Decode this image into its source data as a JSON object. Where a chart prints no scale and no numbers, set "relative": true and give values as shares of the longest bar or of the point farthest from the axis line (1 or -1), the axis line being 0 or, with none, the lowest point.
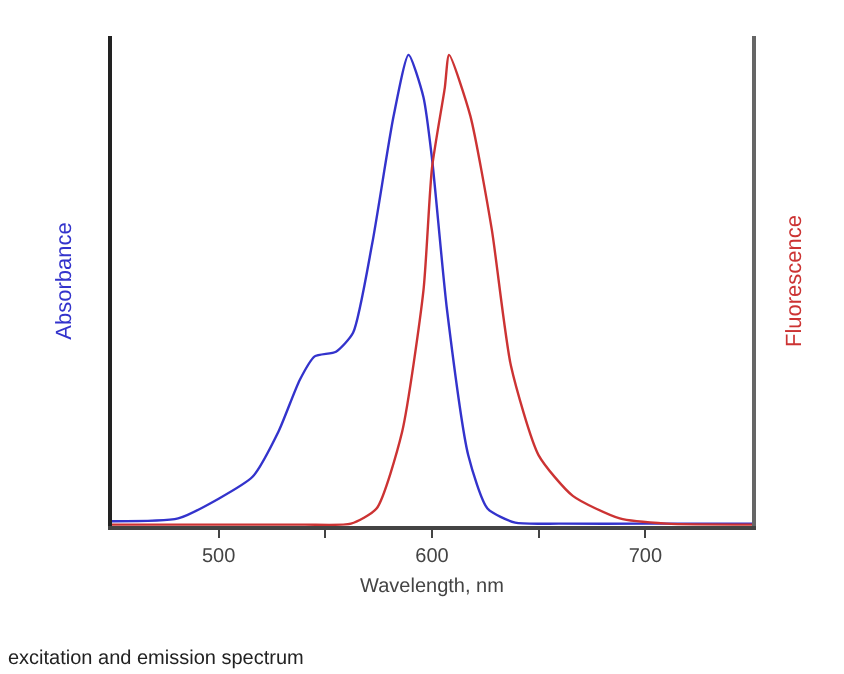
{
  "chart_data": {
    "type": "line",
    "relative": true,
    "xlabel": "Wavelength, nm",
    "ylabel": "Absorbance",
    "y2label": "Fluorescence",
    "xlim": [
      450,
      750
    ],
    "xticks": [
      500,
      {
        "value": 550,
        "label": null
      },
      600,
      {
        "value": 650,
        "label": null
      },
      700
    ],
    "grid": false,
    "marker": "none",
    "line_style": "solid",
    "annotations": [
      "excitation and emission spectrum"
    ],
    "series": [
      {
        "color": "#3333cc",
        "x": [
          450,
          481,
          500,
          516,
          528,
          538,
          545,
          555,
          563,
          572,
          582,
          589,
          596,
          600,
          607,
          617,
          626,
          639,
          660,
          700,
          750
        ],
        "values": [
          0.01,
          0.016,
          0.058,
          0.105,
          0.2,
          0.31,
          0.36,
          0.37,
          0.41,
          0.6,
          0.87,
          1,
          0.91,
          0.78,
          0.46,
          0.15,
          0.037,
          0.007,
          0.005,
          0.005,
          0.005
        ]
      },
      {
        "color": "#cc3333",
        "axis": "y2",
        "x": [
          450,
          500,
          540,
          562,
          574,
          586,
          596,
          600,
          606,
          608,
          618,
          628,
          637,
          650,
          666,
          688,
          710,
          750
        ],
        "values": [
          0.003,
          0.003,
          0.003,
          0.005,
          0.037,
          0.2,
          0.5,
          0.76,
          0.93,
          1,
          0.87,
          0.63,
          0.34,
          0.15,
          0.064,
          0.016,
          0.005,
          0.003
        ]
      }
    ]
  }
}
